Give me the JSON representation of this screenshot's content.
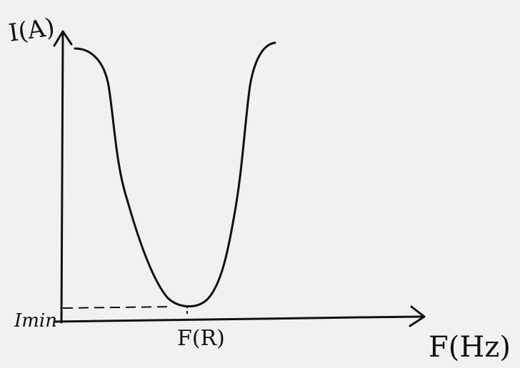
{
  "diagram": {
    "y_axis_label": "I(A)",
    "x_axis_label": "F(Hz)",
    "min_label": "Imin",
    "resonance_label": "F(R)"
  }
}
